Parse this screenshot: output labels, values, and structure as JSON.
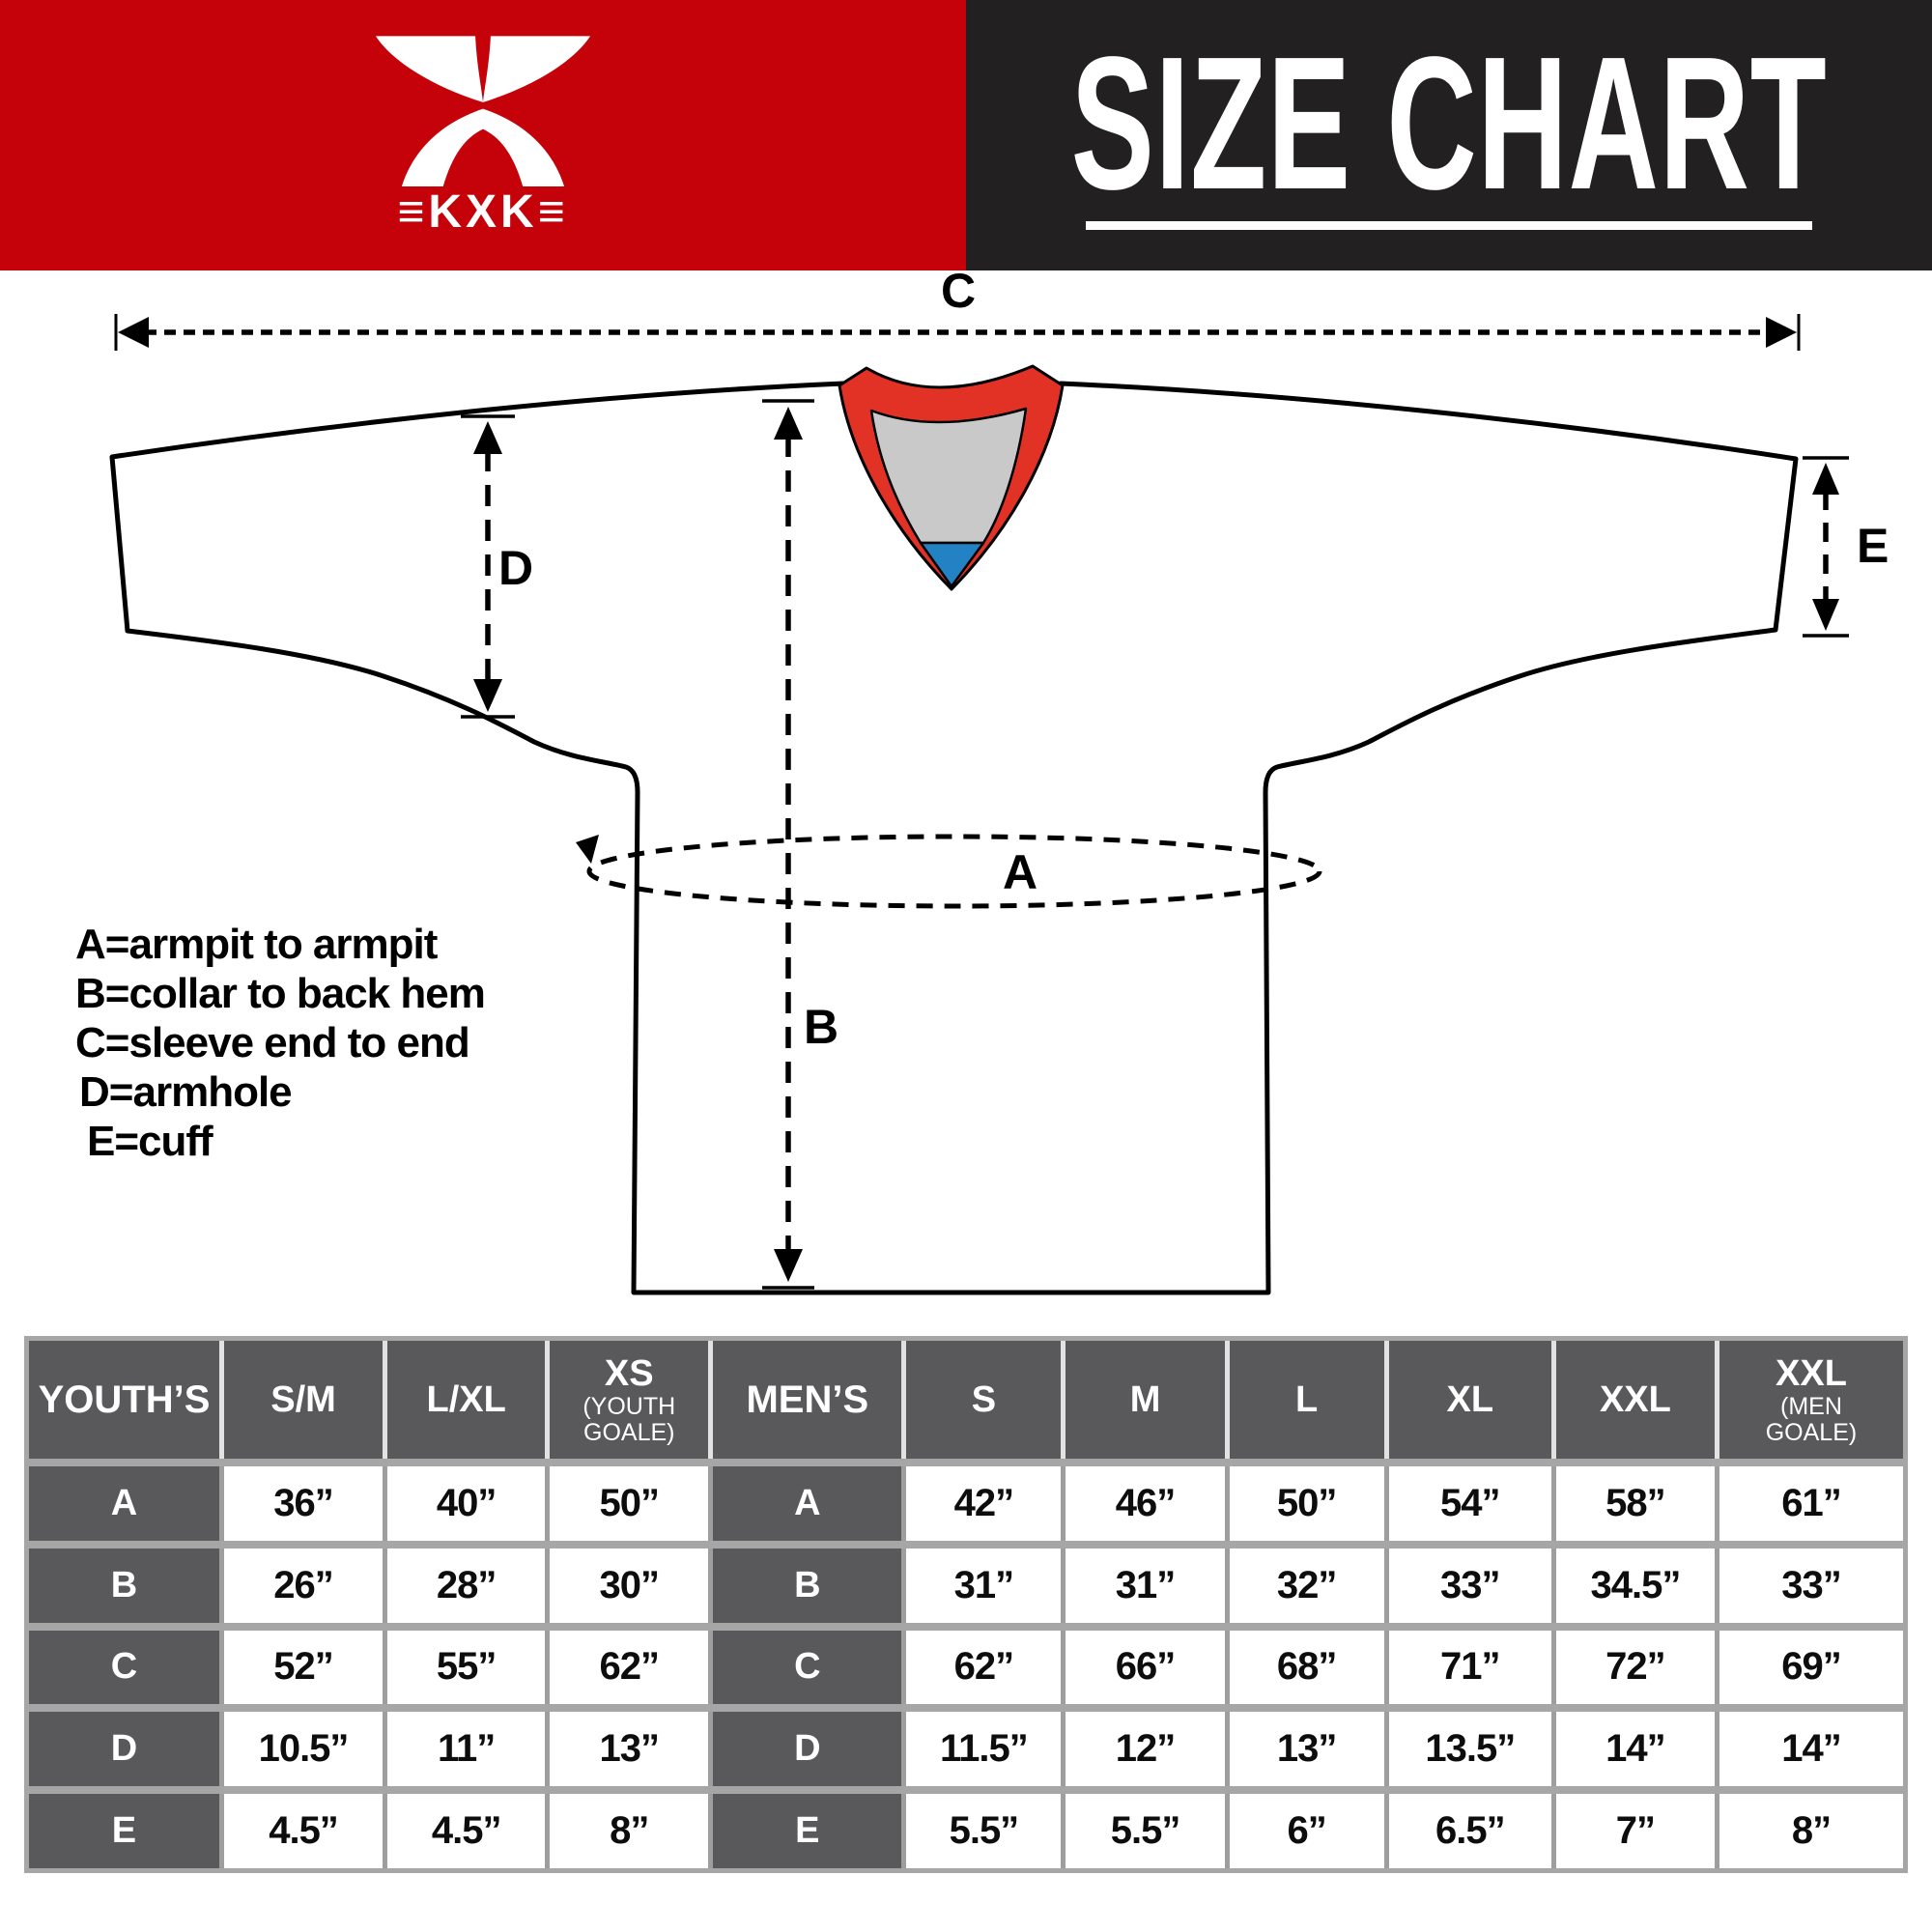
{
  "header": {
    "logo": {
      "icon": "kxk-x-mark-icon",
      "text": "≡KXK≡"
    },
    "title": "SIZE CHART",
    "colors": {
      "red": "#c50109",
      "black": "#232021"
    }
  },
  "diagram": {
    "measure_labels": {
      "a": "A",
      "b": "B",
      "c": "C",
      "d": "D",
      "e": "E"
    },
    "legend": {
      "a": "A=armpit to armpit",
      "b": "B=collar to back hem",
      "c": "C=sleeve end to end",
      "d": "D=armhole",
      "e": "E=cuff"
    },
    "colors": {
      "collar_red": "#e23125",
      "collar_inner_gray": "#c9c9c9",
      "collar_blue": "#2382c4",
      "outline": "#000000"
    }
  },
  "size_table": {
    "row_labels": [
      "A",
      "B",
      "C",
      "D",
      "E"
    ],
    "youth": {
      "group_label": "YOUTH’S",
      "columns": [
        {
          "label": "S/M",
          "sub": ""
        },
        {
          "label": "L/XL",
          "sub": ""
        },
        {
          "label": "XS",
          "sub": "(YOUTH GOALE)"
        }
      ],
      "values": [
        [
          "36”",
          "40”",
          "50”"
        ],
        [
          "26”",
          "28”",
          "30”"
        ],
        [
          "52”",
          "55”",
          "62”"
        ],
        [
          "10.5”",
          "11”",
          "13”"
        ],
        [
          "4.5”",
          "4.5”",
          "8”"
        ]
      ]
    },
    "mens": {
      "group_label": "MEN’S",
      "columns": [
        {
          "label": "S",
          "sub": ""
        },
        {
          "label": "M",
          "sub": ""
        },
        {
          "label": "L",
          "sub": ""
        },
        {
          "label": "XL",
          "sub": ""
        },
        {
          "label": "XXL",
          "sub": ""
        },
        {
          "label": "XXL",
          "sub": "(MEN GOALE)"
        }
      ],
      "values": [
        [
          "42”",
          "46”",
          "50”",
          "54”",
          "58”",
          "61”"
        ],
        [
          "31”",
          "31”",
          "32”",
          "33”",
          "34.5”",
          "33”"
        ],
        [
          "62”",
          "66”",
          "68”",
          "71”",
          "72”",
          "69”"
        ],
        [
          "11.5”",
          "12”",
          "13”",
          "13.5”",
          "14”",
          "14”"
        ],
        [
          "5.5”",
          "5.5”",
          "6”",
          "6.5”",
          "7”",
          "8”"
        ]
      ]
    }
  }
}
